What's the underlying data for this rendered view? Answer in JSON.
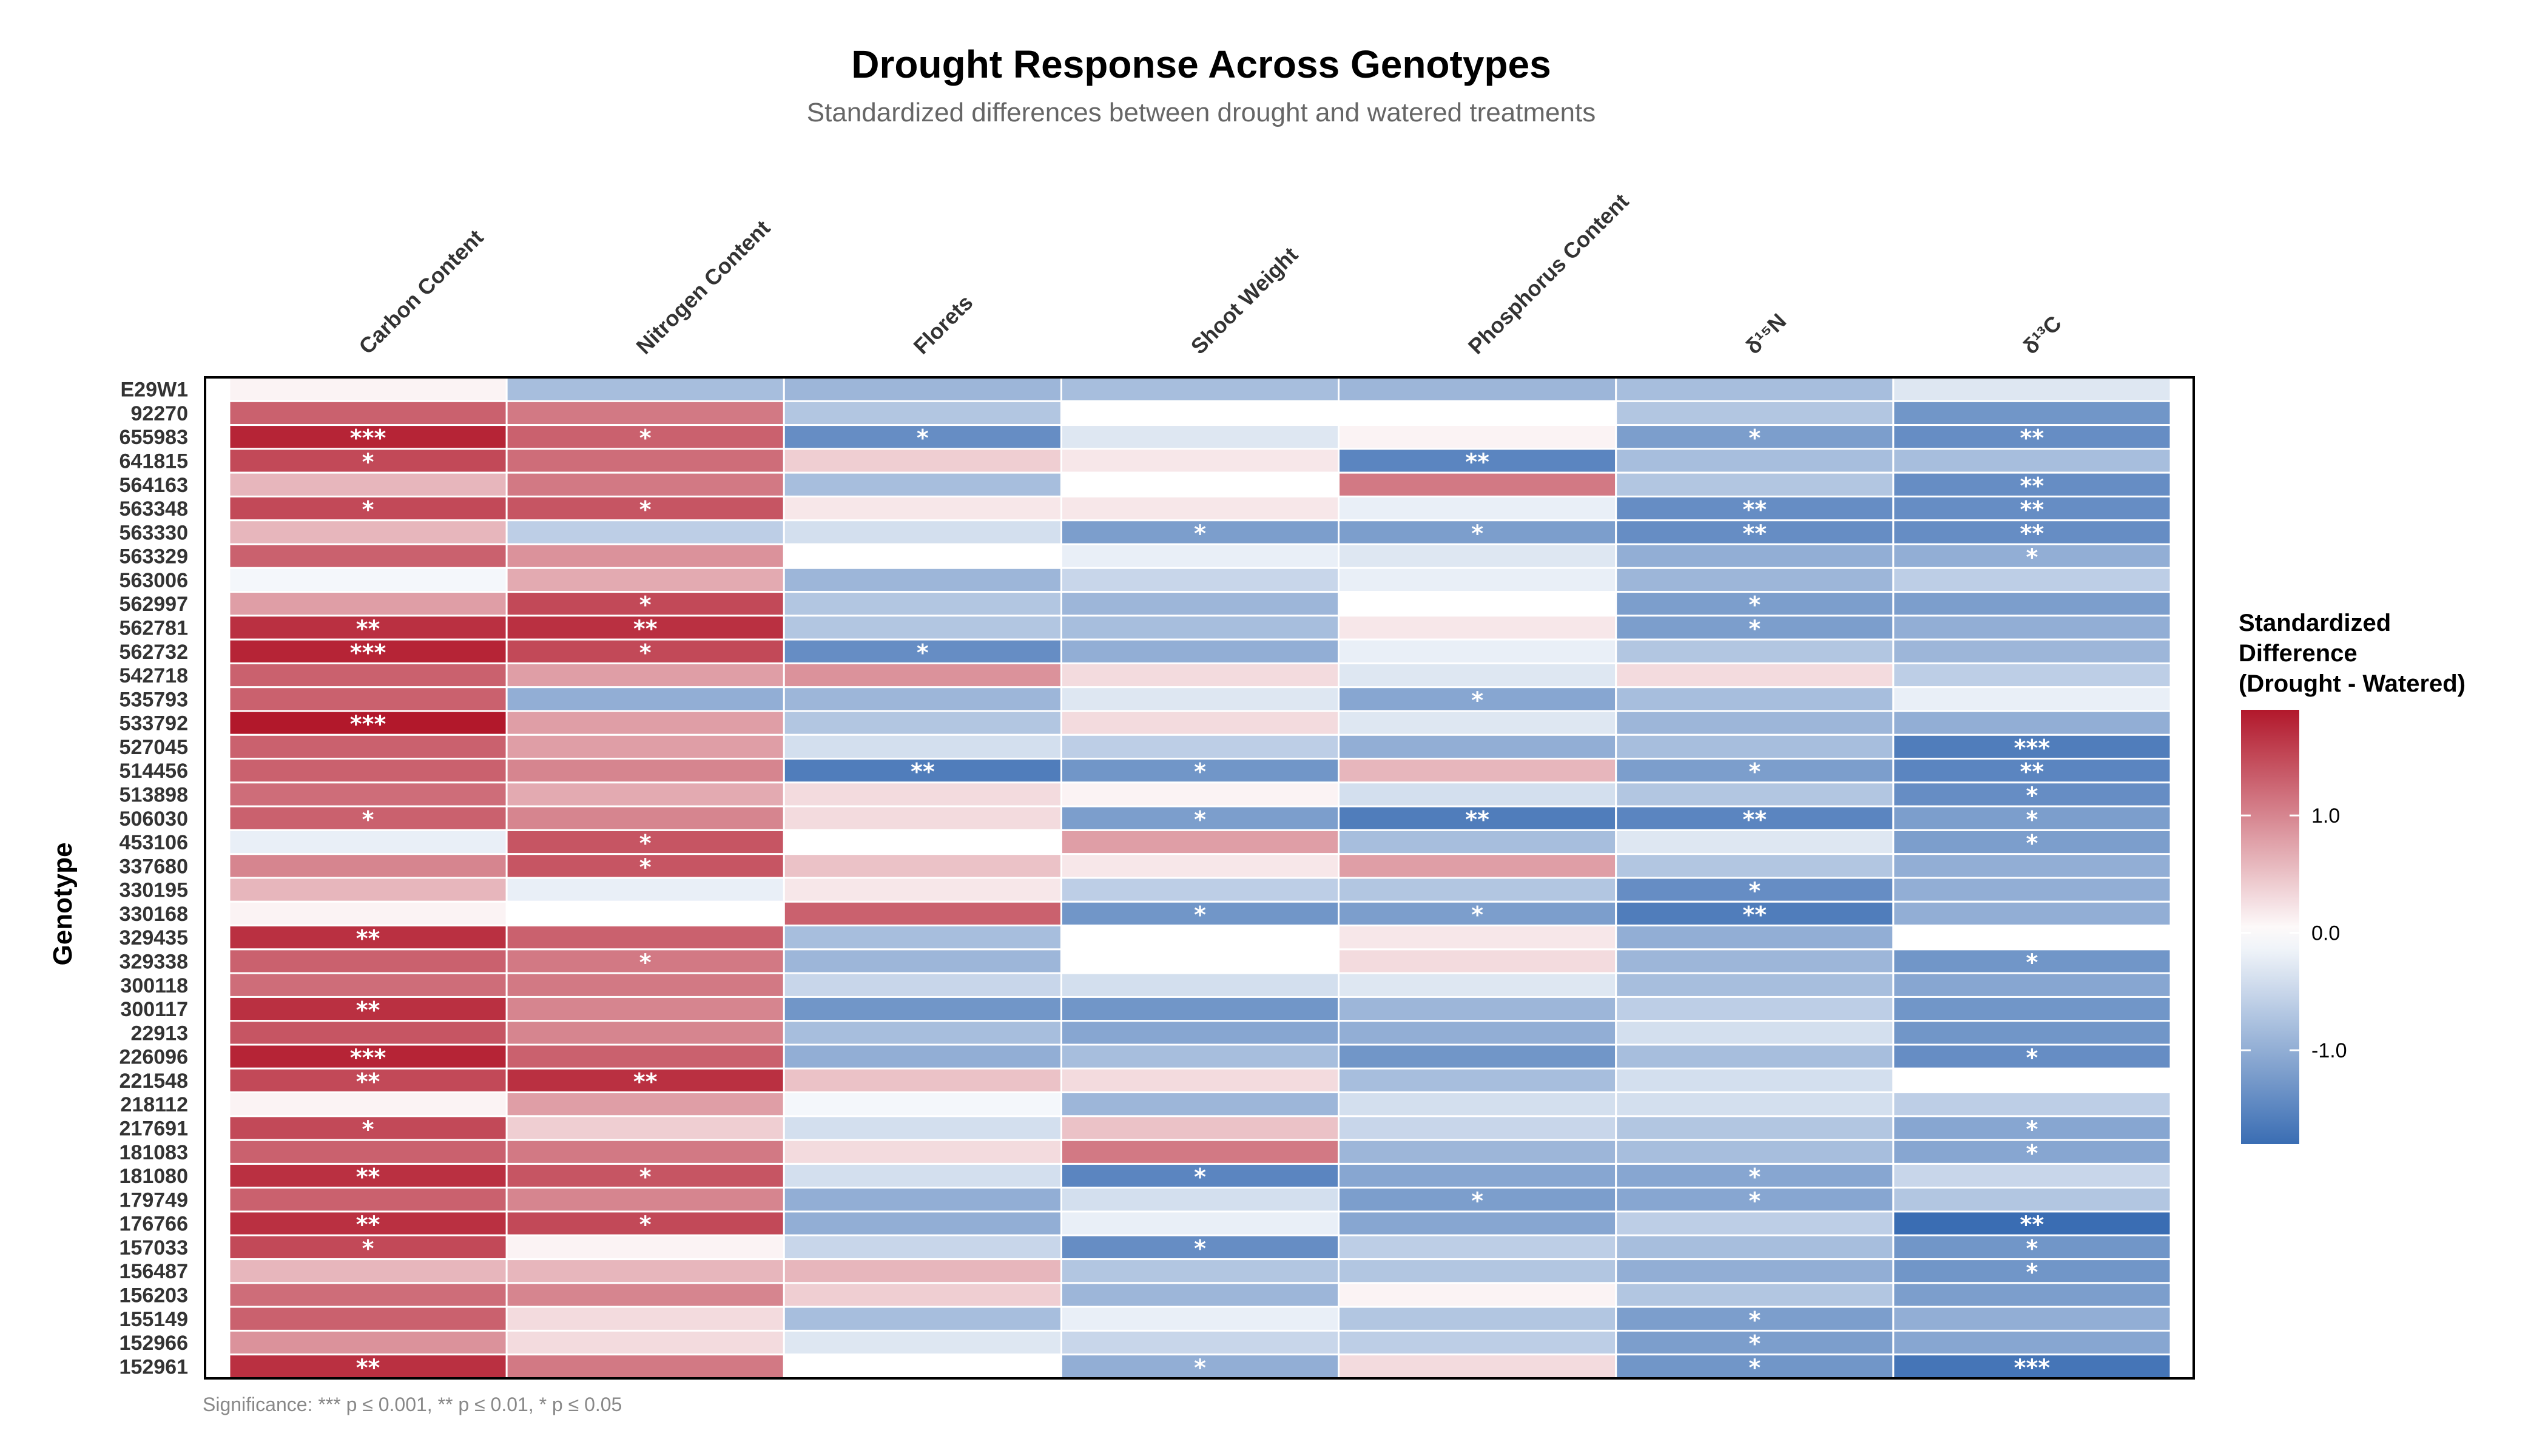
{
  "chart_data": {
    "type": "heatmap",
    "title": "Drought Response Across Genotypes",
    "subtitle": "Standardized differences between drought and watered treatments",
    "ylabel": "Genotype",
    "columns": [
      "Carbon Content",
      "Nitrogen Content",
      "Florets",
      "Shoot Weight",
      "Phosphorus Content",
      "δ¹⁵N",
      "δ¹³C"
    ],
    "rows": [
      "E29W1",
      "92270",
      "655983",
      "641815",
      "564163",
      "563348",
      "563330",
      "563329",
      "563006",
      "562997",
      "562781",
      "562732",
      "542718",
      "535793",
      "533792",
      "527045",
      "514456",
      "513898",
      "506030",
      "453106",
      "337680",
      "330195",
      "330168",
      "329435",
      "329338",
      "300118",
      "300117",
      "22913",
      "226096",
      "221548",
      "218112",
      "217691",
      "181083",
      "181080",
      "179749",
      "176766",
      "157033",
      "156487",
      "156203",
      "155149",
      "152966",
      "152961"
    ],
    "values": [
      [
        0.1,
        -0.8,
        -0.9,
        -0.8,
        -0.9,
        -0.8,
        -0.3
      ],
      [
        1.3,
        1.1,
        -0.7,
        0.0,
        0.0,
        -0.7,
        -1.3
      ],
      [
        1.8,
        1.3,
        -1.4,
        -0.3,
        0.1,
        -1.2,
        -1.4
      ],
      [
        1.5,
        1.2,
        0.4,
        0.2,
        -1.5,
        -0.8,
        -0.8
      ],
      [
        0.6,
        1.1,
        -0.8,
        0.0,
        1.1,
        -0.7,
        -1.4
      ],
      [
        1.5,
        1.4,
        0.2,
        0.2,
        -0.2,
        -1.4,
        -1.4
      ],
      [
        0.6,
        -0.6,
        -0.4,
        -1.2,
        -1.2,
        -1.4,
        -1.4
      ],
      [
        1.3,
        0.9,
        0.0,
        -0.2,
        -0.3,
        -1.0,
        -1.0
      ],
      [
        -0.1,
        0.7,
        -0.9,
        -0.5,
        -0.2,
        -0.9,
        -0.6
      ],
      [
        0.8,
        1.5,
        -0.7,
        -0.9,
        0.0,
        -1.2,
        -1.2
      ],
      [
        1.7,
        1.7,
        -0.7,
        -0.8,
        0.2,
        -1.2,
        -1.0
      ],
      [
        1.8,
        1.5,
        -1.4,
        -1.0,
        -0.2,
        -0.7,
        -0.9
      ],
      [
        1.3,
        0.8,
        0.9,
        0.3,
        -0.3,
        0.3,
        -0.6
      ],
      [
        1.3,
        -1.0,
        -0.9,
        -0.3,
        -1.1,
        -0.8,
        -0.2
      ],
      [
        1.9,
        0.8,
        -0.7,
        0.3,
        -0.3,
        -0.9,
        -1.0
      ],
      [
        1.3,
        0.8,
        -0.4,
        -0.6,
        -1.0,
        -0.8,
        -1.6
      ],
      [
        1.3,
        1.0,
        -1.6,
        -1.3,
        0.6,
        -1.2,
        -1.5
      ],
      [
        1.2,
        0.7,
        0.3,
        0.1,
        -0.4,
        -0.7,
        -1.4
      ],
      [
        1.3,
        1.0,
        0.3,
        -1.2,
        -1.6,
        -1.5,
        -1.2
      ],
      [
        -0.2,
        1.4,
        0.0,
        0.8,
        -0.8,
        -0.3,
        -1.2
      ],
      [
        1.0,
        1.4,
        0.5,
        0.2,
        0.8,
        -0.7,
        -1.0
      ],
      [
        0.6,
        -0.2,
        0.2,
        -0.6,
        -0.7,
        -1.4,
        -1.0
      ],
      [
        0.1,
        0.0,
        1.3,
        -1.3,
        -1.2,
        -1.6,
        -1.0
      ],
      [
        1.7,
        1.3,
        -0.8,
        0.0,
        0.2,
        -1.0,
        0.0
      ],
      [
        1.3,
        1.1,
        -0.9,
        0.0,
        0.3,
        -0.9,
        -1.3
      ],
      [
        1.2,
        1.1,
        -0.5,
        -0.4,
        -0.3,
        -0.8,
        -1.1
      ],
      [
        1.7,
        1.0,
        -1.3,
        -1.3,
        -0.9,
        -0.6,
        -1.3
      ],
      [
        1.4,
        1.0,
        -0.8,
        -1.1,
        -1.0,
        -0.4,
        -1.3
      ],
      [
        1.8,
        1.3,
        -1.0,
        -0.8,
        -1.3,
        -0.8,
        -1.4
      ],
      [
        1.5,
        1.7,
        0.5,
        0.3,
        -0.8,
        -0.4,
        0.0
      ],
      [
        0.1,
        0.8,
        -0.1,
        -0.9,
        -0.4,
        -0.4,
        -0.6
      ],
      [
        1.5,
        0.4,
        -0.4,
        0.5,
        -0.5,
        -0.7,
        -1.1
      ],
      [
        1.3,
        1.1,
        0.3,
        1.1,
        -0.9,
        -0.8,
        -1.1
      ],
      [
        1.7,
        1.4,
        -0.4,
        -1.5,
        -1.1,
        -1.1,
        -0.5
      ],
      [
        1.3,
        1.0,
        -1.0,
        -0.4,
        -1.2,
        -1.1,
        -0.7
      ],
      [
        1.7,
        1.5,
        -1.0,
        -0.2,
        -1.1,
        -0.6,
        -1.8
      ],
      [
        1.5,
        0.1,
        -0.5,
        -1.4,
        -0.6,
        -0.8,
        -1.3
      ],
      [
        0.6,
        0.6,
        0.6,
        -0.7,
        -0.7,
        -1.0,
        -1.3
      ],
      [
        1.2,
        1.0,
        0.4,
        -0.9,
        0.1,
        -0.7,
        -1.2
      ],
      [
        1.3,
        0.3,
        -0.8,
        -0.2,
        -0.7,
        -1.2,
        -1.0
      ],
      [
        0.9,
        0.3,
        -0.3,
        -0.5,
        -0.6,
        -1.2,
        -1.1
      ],
      [
        1.7,
        1.1,
        0.0,
        -1.0,
        0.3,
        -1.3,
        -1.7
      ]
    ],
    "significance": [
      [
        "",
        "",
        "",
        "",
        "",
        "",
        ""
      ],
      [
        "",
        "",
        "",
        "",
        "",
        "",
        ""
      ],
      [
        "***",
        "*",
        "*",
        "",
        "",
        "*",
        "**"
      ],
      [
        "*",
        "",
        "",
        "",
        "**",
        "",
        ""
      ],
      [
        "",
        "",
        "",
        "",
        "",
        "",
        "**"
      ],
      [
        "*",
        "*",
        "",
        "",
        "",
        "**",
        "**"
      ],
      [
        "",
        "",
        "",
        "*",
        "*",
        "**",
        "**"
      ],
      [
        "",
        "",
        "",
        "",
        "",
        "",
        "*"
      ],
      [
        "",
        "",
        "",
        "",
        "",
        "",
        ""
      ],
      [
        "",
        "*",
        "",
        "",
        "",
        "*",
        ""
      ],
      [
        "**",
        "**",
        "",
        "",
        "",
        "*",
        ""
      ],
      [
        "***",
        "*",
        "*",
        "",
        "",
        "",
        ""
      ],
      [
        "",
        "",
        "",
        "",
        "",
        "",
        ""
      ],
      [
        "",
        "",
        "",
        "",
        "*",
        "",
        ""
      ],
      [
        "***",
        "",
        "",
        "",
        "",
        "",
        ""
      ],
      [
        "",
        "",
        "",
        "",
        "",
        "",
        "***"
      ],
      [
        "",
        "",
        "**",
        "*",
        "",
        "*",
        "**"
      ],
      [
        "",
        "",
        "",
        "",
        "",
        "",
        "*"
      ],
      [
        "*",
        "",
        "",
        "*",
        "**",
        "**",
        "*"
      ],
      [
        "",
        "*",
        "",
        "",
        "",
        "",
        "*"
      ],
      [
        "",
        "*",
        "",
        "",
        "",
        "",
        ""
      ],
      [
        "",
        "",
        "",
        "",
        "",
        "*",
        ""
      ],
      [
        "",
        "",
        "",
        "*",
        "*",
        "**",
        ""
      ],
      [
        "**",
        "",
        "",
        "",
        "",
        "",
        ""
      ],
      [
        "",
        "*",
        "",
        "",
        "",
        "",
        "*"
      ],
      [
        "",
        "",
        "",
        "",
        "",
        "",
        ""
      ],
      [
        "**",
        "",
        "",
        "",
        "",
        "",
        ""
      ],
      [
        "",
        "",
        "",
        "",
        "",
        "",
        ""
      ],
      [
        "***",
        "",
        "",
        "",
        "",
        "",
        "*"
      ],
      [
        "**",
        "**",
        "",
        "",
        "",
        "",
        ""
      ],
      [
        "",
        "",
        "",
        "",
        "",
        "",
        ""
      ],
      [
        "*",
        "",
        "",
        "",
        "",
        "",
        "*"
      ],
      [
        "",
        "",
        "",
        "",
        "",
        "",
        "*"
      ],
      [
        "**",
        "*",
        "",
        "*",
        "",
        "*",
        ""
      ],
      [
        "",
        "",
        "",
        "",
        "*",
        "*",
        ""
      ],
      [
        "**",
        "*",
        "",
        "",
        "",
        "",
        "**"
      ],
      [
        "*",
        "",
        "",
        "*",
        "",
        "",
        "*"
      ],
      [
        "",
        "",
        "",
        "",
        "",
        "",
        "*"
      ],
      [
        "",
        "",
        "",
        "",
        "",
        "",
        ""
      ],
      [
        "",
        "",
        "",
        "",
        "",
        "*",
        ""
      ],
      [
        "",
        "",
        "",
        "",
        "",
        "*",
        ""
      ],
      [
        "**",
        "",
        "",
        "*",
        "",
        "*",
        "***"
      ]
    ],
    "value_range": [
      -1.8,
      1.9
    ],
    "color_scale": {
      "low": "#3A6DB3",
      "mid": "#FFFFFF",
      "high": "#B2182B"
    },
    "legend": {
      "title_lines": [
        "Standardized",
        "Difference",
        "(Drought - Watered)"
      ],
      "ticks": [
        1.0,
        0.0,
        -1.0
      ],
      "tick_labels": [
        "1.0",
        "0.0",
        "-1.0"
      ],
      "placement": "right"
    },
    "caption": "Significance: *** p ≤ 0.001, ** p ≤ 0.01, * p ≤ 0.05"
  }
}
